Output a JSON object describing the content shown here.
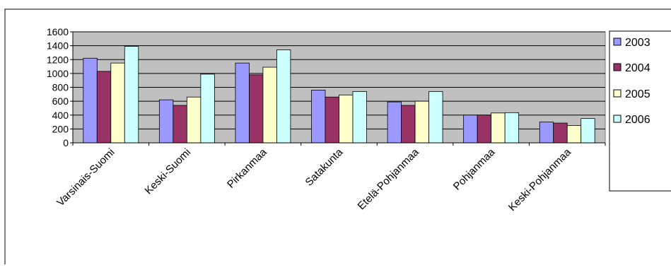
{
  "chart_data": {
    "type": "bar",
    "categories": [
      "Varsinais-Suomi",
      "Keski-Suomi",
      "Pirkanmaa",
      "Satakunta",
      "Etelä-Pohjanmaa",
      "Pohjanmaa",
      "Keski-Pohjanmaa"
    ],
    "series": [
      {
        "name": "2003",
        "color": "#9999ff",
        "values": [
          1220,
          620,
          1150,
          760,
          590,
          400,
          300
        ]
      },
      {
        "name": "2004",
        "color": "#993366",
        "values": [
          1030,
          540,
          980,
          660,
          540,
          400,
          285
        ]
      },
      {
        "name": "2005",
        "color": "#ffffcc",
        "values": [
          1150,
          660,
          1090,
          690,
          600,
          430,
          250
        ]
      },
      {
        "name": "2006",
        "color": "#ccffff",
        "values": [
          1390,
          990,
          1340,
          740,
          740,
          435,
          350
        ]
      }
    ],
    "ylim": [
      0,
      1600
    ],
    "yticks": [
      "0",
      "200",
      "400",
      "600",
      "800",
      "1000",
      "1200",
      "1400",
      "1600"
    ],
    "grid": true,
    "plot_background": "#c0c0c0",
    "legend_position": "right"
  }
}
